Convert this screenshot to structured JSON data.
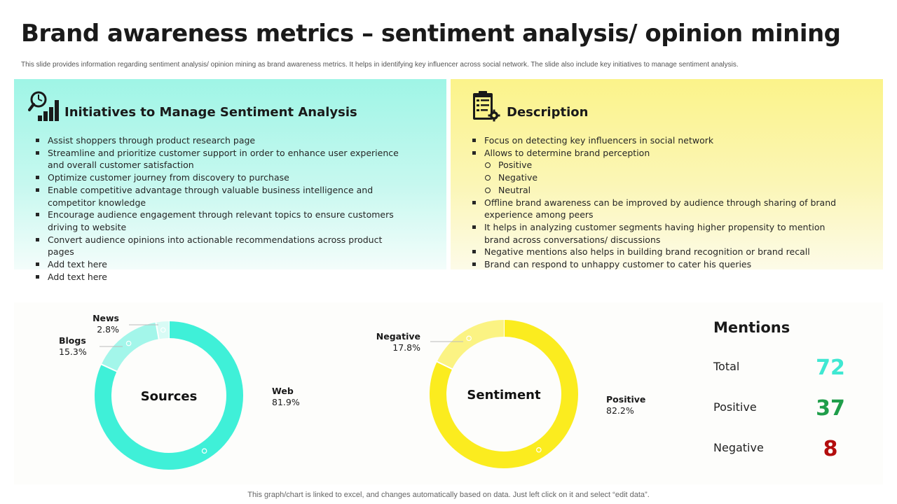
{
  "page": {
    "title": "Brand awareness metrics – sentiment analysis/ opinion mining",
    "subtitle": "This slide provides information regarding sentiment analysis/ opinion mining as brand awareness metrics. It helps in identifying key influencer across social network. The slide also include key initiatives to manage sentiment analysis.",
    "footer": "This graph/chart is linked to excel,  and changes automatically based on data. Just left click on it and select “edit data”."
  },
  "initiatives": {
    "heading": "Initiatives to Manage Sentiment Analysis",
    "icon": "magnifier-bar-chart-icon",
    "items": [
      {
        "text": "Assist shoppers through product research page",
        "level": 1
      },
      {
        "text": "Streamline and prioritize customer support in order to enhance user experience and overall customer satisfaction",
        "level": 1
      },
      {
        "text": "Optimize customer journey from discovery to purchase",
        "level": 1
      },
      {
        "text": "Enable competitive advantage through valuable business intelligence and competitor knowledge",
        "level": 1
      },
      {
        "text": "Encourage audience engagement through relevant topics to ensure customers driving to website",
        "level": 1
      },
      {
        "text": "Convert audience opinions into actionable recommendations across product pages",
        "level": 1
      },
      {
        "text": "Add text here",
        "level": 1
      },
      {
        "text": "Add text here",
        "level": 1
      }
    ]
  },
  "description": {
    "heading": "Description",
    "icon": "clipboard-gear-icon",
    "items": [
      {
        "text": "Focus on detecting key influencers in social network",
        "level": 1
      },
      {
        "text": "Allows to determine brand perception",
        "level": 1
      },
      {
        "text": "Positive",
        "level": 2
      },
      {
        "text": "Negative",
        "level": 2
      },
      {
        "text": "Neutral",
        "level": 2
      },
      {
        "text": "Offline brand awareness can be improved by audience through sharing of brand experience among peers",
        "level": 1
      },
      {
        "text": "It helps in analyzing customer segments having higher propensity to mention brand across conversations/ discussions",
        "level": 1
      },
      {
        "text": "Negative mentions also helps in building brand recognition or brand recall",
        "level": 1
      },
      {
        "text": "Brand can respond to unhappy customer to cater his queries",
        "level": 1
      }
    ]
  },
  "chart_data": [
    {
      "type": "pie",
      "title": "Sources",
      "slices": [
        {
          "name": "Web",
          "value": 81.9,
          "label": "81.9%",
          "color": "#3ff0d8"
        },
        {
          "name": "Blogs",
          "value": 15.3,
          "label": "15.3%",
          "color": "#a3f6ea"
        },
        {
          "name": "News",
          "value": 2.8,
          "label": "2.8%",
          "color": "#d8fbf5"
        }
      ]
    },
    {
      "type": "pie",
      "title": "Sentiment",
      "slices": [
        {
          "name": "Positive",
          "value": 82.2,
          "label": "82.2%",
          "color": "#fbec1f"
        },
        {
          "name": "Negative",
          "value": 17.8,
          "label": "17.8%",
          "color": "#fbf383"
        }
      ]
    }
  ],
  "mentions": {
    "title": "Mentions",
    "rows": [
      {
        "label": "Total",
        "value": "72",
        "color": "#3fe8d2"
      },
      {
        "label": "Positive",
        "value": "37",
        "color": "#1f9e4a"
      },
      {
        "label": "Negative",
        "value": "8",
        "color": "#b30d0d"
      }
    ]
  }
}
